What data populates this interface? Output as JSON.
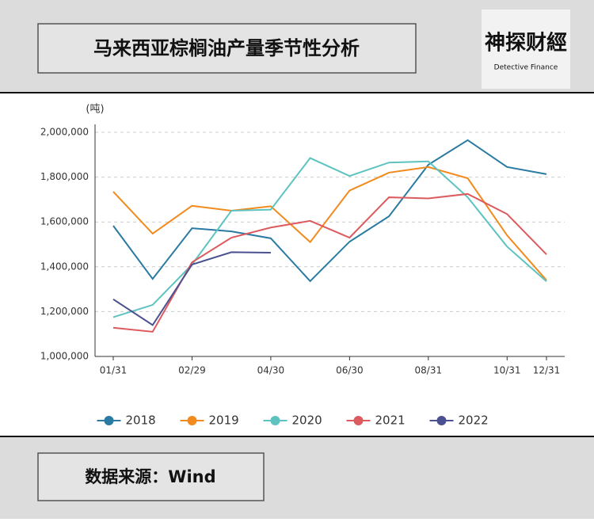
{
  "header": {
    "title": "马来西亚棕榈油产量季节性分析",
    "logo": "神探财經",
    "logo_subtitle": "Detective Finance"
  },
  "footer": {
    "source": "数据来源：Wind"
  },
  "chart_data": {
    "type": "line",
    "y_unit": "(吨)",
    "categories": [
      "01/31",
      null,
      "02/29",
      null,
      "04/30",
      null,
      "06/30",
      null,
      "08/31",
      null,
      "10/31",
      "12/31"
    ],
    "ylim": [
      1000000,
      2000000
    ],
    "yticks": [
      {
        "value": 1000000,
        "label": "1,000,000"
      },
      {
        "value": 1200000,
        "label": "1,200,000"
      },
      {
        "value": 1400000,
        "label": "1,400,000"
      },
      {
        "value": 1600000,
        "label": "1,600,000"
      },
      {
        "value": 1800000,
        "label": "1,800,000"
      },
      {
        "value": 2000000,
        "label": "2,000,000"
      }
    ],
    "grid": true,
    "legend": "bottom",
    "series": [
      {
        "name": "2018",
        "color": "#2a7aa1",
        "values": [
          1583000,
          1346000,
          1572000,
          1558000,
          1527000,
          1336000,
          1512000,
          1625000,
          1855000,
          1965000,
          1845000,
          1813000
        ]
      },
      {
        "name": "2019",
        "color": "#f28a1e",
        "values": [
          1735000,
          1548000,
          1672000,
          1650000,
          1670000,
          1510000,
          1740000,
          1820000,
          1845000,
          1795000,
          1540000,
          1340000
        ]
      },
      {
        "name": "2020",
        "color": "#5cc3c0",
        "values": [
          1175000,
          1230000,
          1410000,
          1650000,
          1655000,
          1885000,
          1805000,
          1865000,
          1870000,
          1710000,
          1490000,
          1335000
        ]
      },
      {
        "name": "2021",
        "color": "#dd5a5e",
        "values": [
          1128000,
          1110000,
          1420000,
          1530000,
          1575000,
          1605000,
          1530000,
          1710000,
          1705000,
          1725000,
          1635000,
          1455000
        ]
      },
      {
        "name": "2022",
        "color": "#4a5090",
        "values": [
          1255000,
          1140000,
          1410000,
          1465000,
          1463000,
          null,
          null,
          null,
          null,
          null,
          null,
          null
        ]
      }
    ]
  }
}
